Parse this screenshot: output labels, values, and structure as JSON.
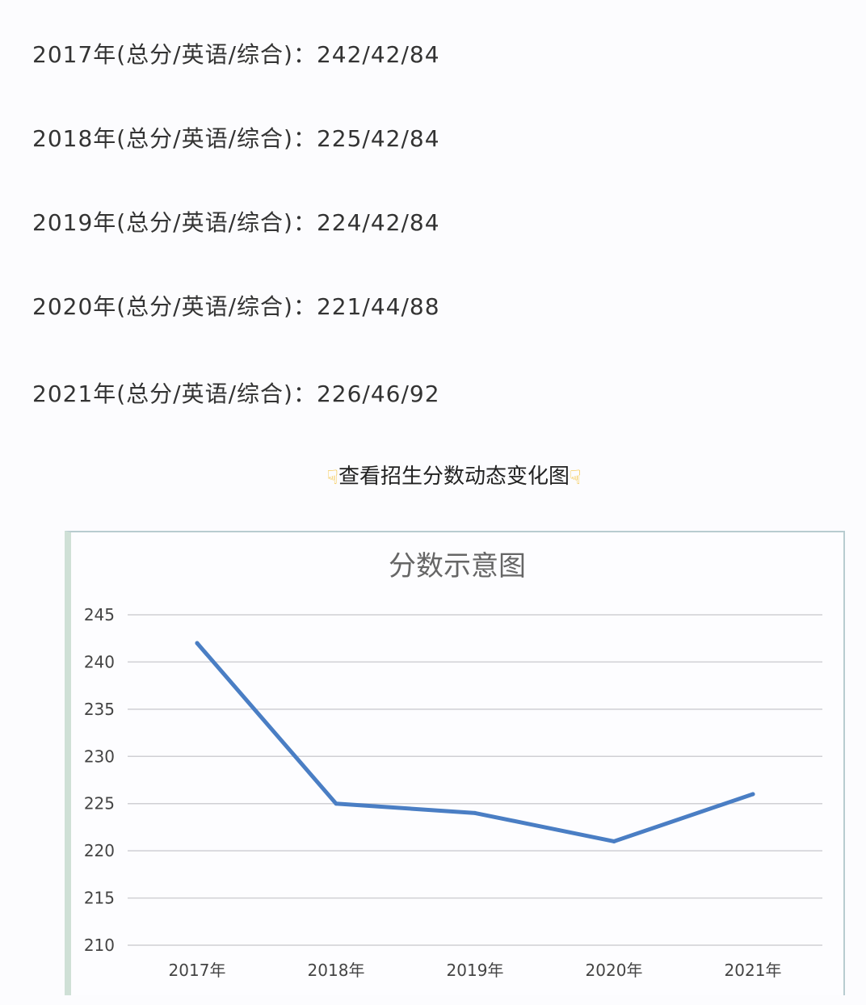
{
  "score_lines": [
    "2017年(总分/英语/综合)：242/42/84",
    "2018年(总分/英语/综合)：225/42/84",
    "2019年(总分/英语/综合)：224/42/84",
    "2020年(总分/英语/综合)：221/44/88",
    "2021年(总分/英语/综合)：226/46/92"
  ],
  "heading": "查看招生分数动态变化图",
  "icons": {
    "hand": "backhand-index-pointing-down-icon"
  },
  "chart_data": {
    "type": "line",
    "title": "分数示意图",
    "categories": [
      "2017年",
      "2018年",
      "2019年",
      "2020年",
      "2021年"
    ],
    "series": [
      {
        "values": [
          242,
          225,
          224,
          221,
          226
        ]
      }
    ],
    "ylim": [
      210,
      245
    ],
    "yticks": [
      "245",
      "240",
      "235",
      "230",
      "225",
      "220",
      "215",
      "210"
    ],
    "grid": true,
    "line_color": "#4a7ec4"
  }
}
